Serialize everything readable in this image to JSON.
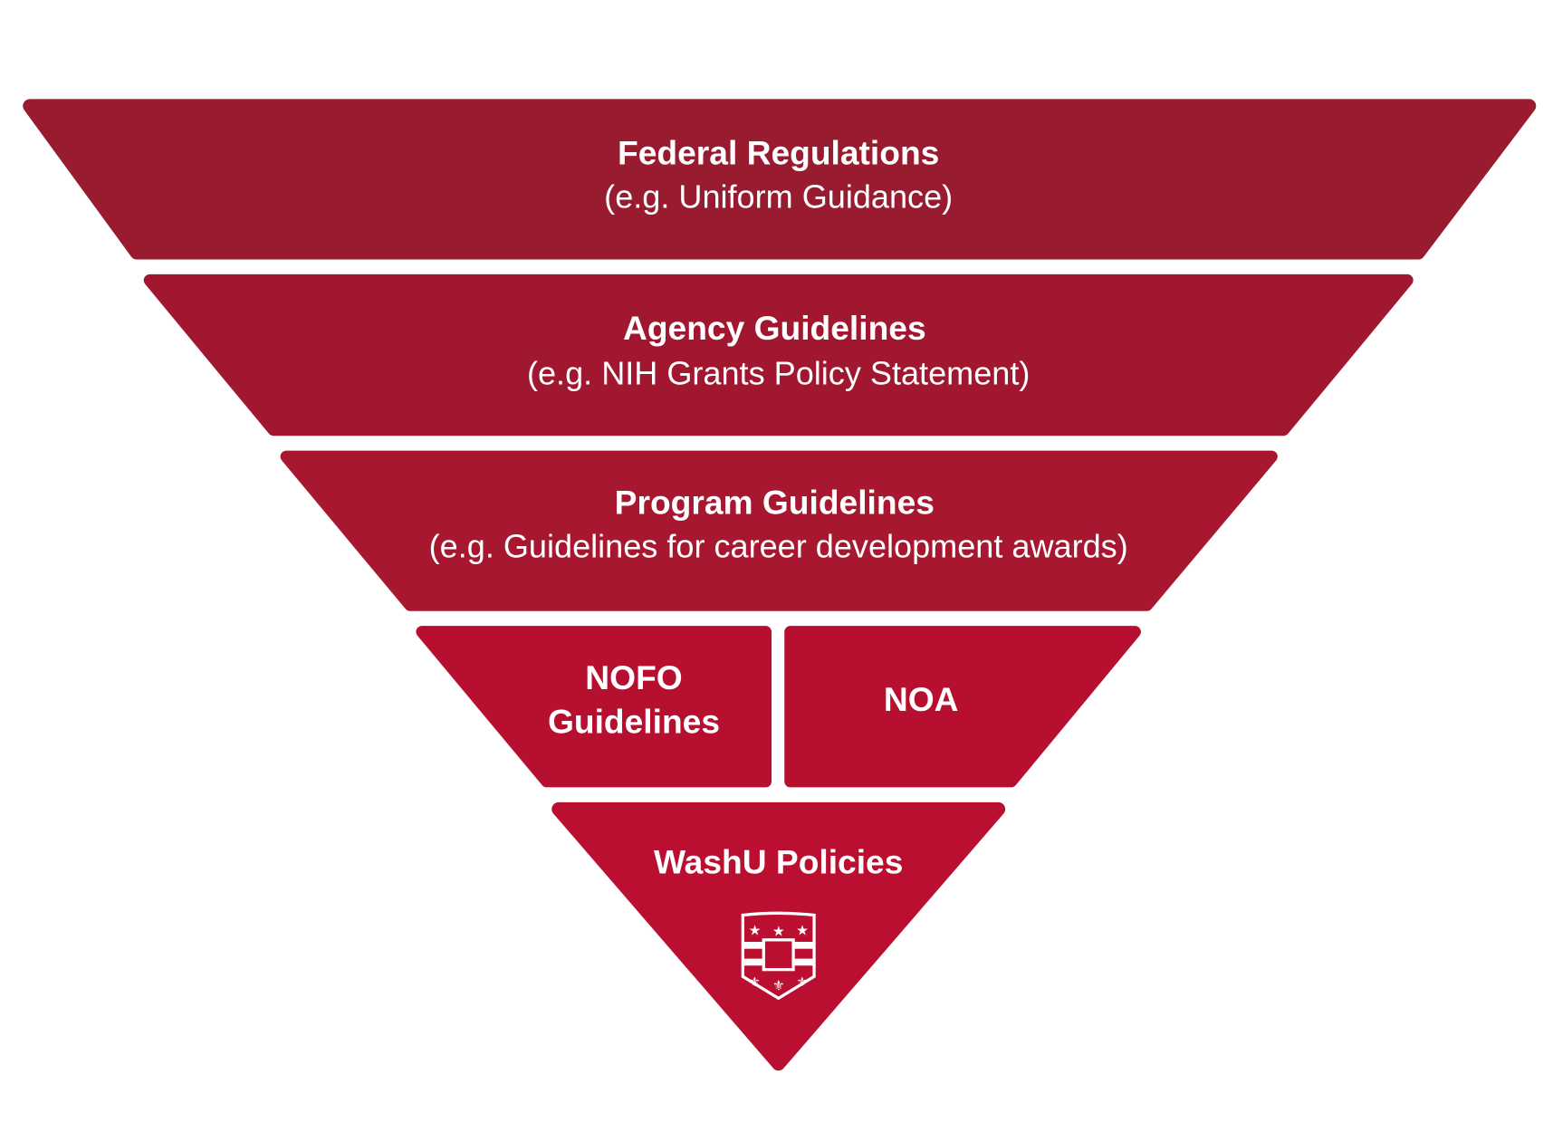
{
  "colors": {
    "level1": "#981b30",
    "level2": "#a11730",
    "level3": "#a81730",
    "level4": "#b70f30",
    "level5": "#ba0f30"
  },
  "levels": [
    {
      "title": "Federal Regulations",
      "subtitle": "(e.g. Uniform Guidance)"
    },
    {
      "title": "Agency Guidelines",
      "subtitle": "(e.g. NIH Grants Policy Statement)"
    },
    {
      "title": "Program Guidelines",
      "subtitle": "(e.g. Guidelines for career development awards)"
    },
    {
      "left": {
        "line1": "NOFO",
        "line2": "Guidelines"
      },
      "right": {
        "title": "NOA"
      }
    },
    {
      "title": "WashU Policies",
      "icon": "washu-shield-icon"
    }
  ]
}
